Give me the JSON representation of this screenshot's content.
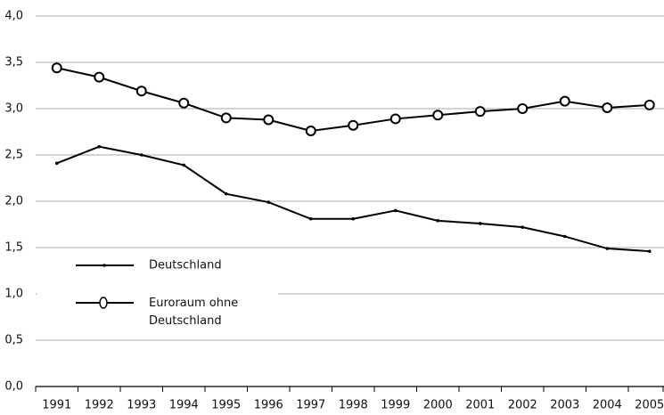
{
  "chart_data": {
    "type": "line",
    "categories": [
      "1991",
      "1992",
      "1993",
      "1994",
      "1995",
      "1996",
      "1997",
      "1998",
      "1999",
      "2000",
      "2001",
      "2002",
      "2003",
      "2004",
      "2005"
    ],
    "series": [
      {
        "name": "Deutschland",
        "color": "#000000",
        "marker": "dot",
        "values": [
          2.41,
          2.59,
          2.5,
          2.39,
          2.08,
          1.99,
          1.81,
          1.81,
          1.9,
          1.79,
          1.76,
          1.72,
          1.62,
          1.49,
          1.46
        ]
      },
      {
        "name": "Euroraum ohne Deutschland",
        "color": "#000000",
        "marker": "open-circle",
        "values": [
          3.44,
          3.34,
          3.19,
          3.06,
          2.9,
          2.88,
          2.76,
          2.82,
          2.89,
          2.93,
          2.97,
          3.0,
          3.08,
          3.01,
          3.04
        ]
      }
    ],
    "ylim": [
      0,
      4
    ],
    "yticks": [
      {
        "value": 0,
        "label": "0,0"
      },
      {
        "value": 0.5,
        "label": "0,5"
      },
      {
        "value": 1,
        "label": "1,0"
      },
      {
        "value": 1.5,
        "label": "1,5"
      },
      {
        "value": 2,
        "label": "2,0"
      },
      {
        "value": 2.5,
        "label": "2,5"
      },
      {
        "value": 3,
        "label": "3,0"
      },
      {
        "value": 3.5,
        "label": "3,5"
      },
      {
        "value": 4,
        "label": "4,0"
      }
    ],
    "grid": true,
    "legend": "lower left"
  }
}
